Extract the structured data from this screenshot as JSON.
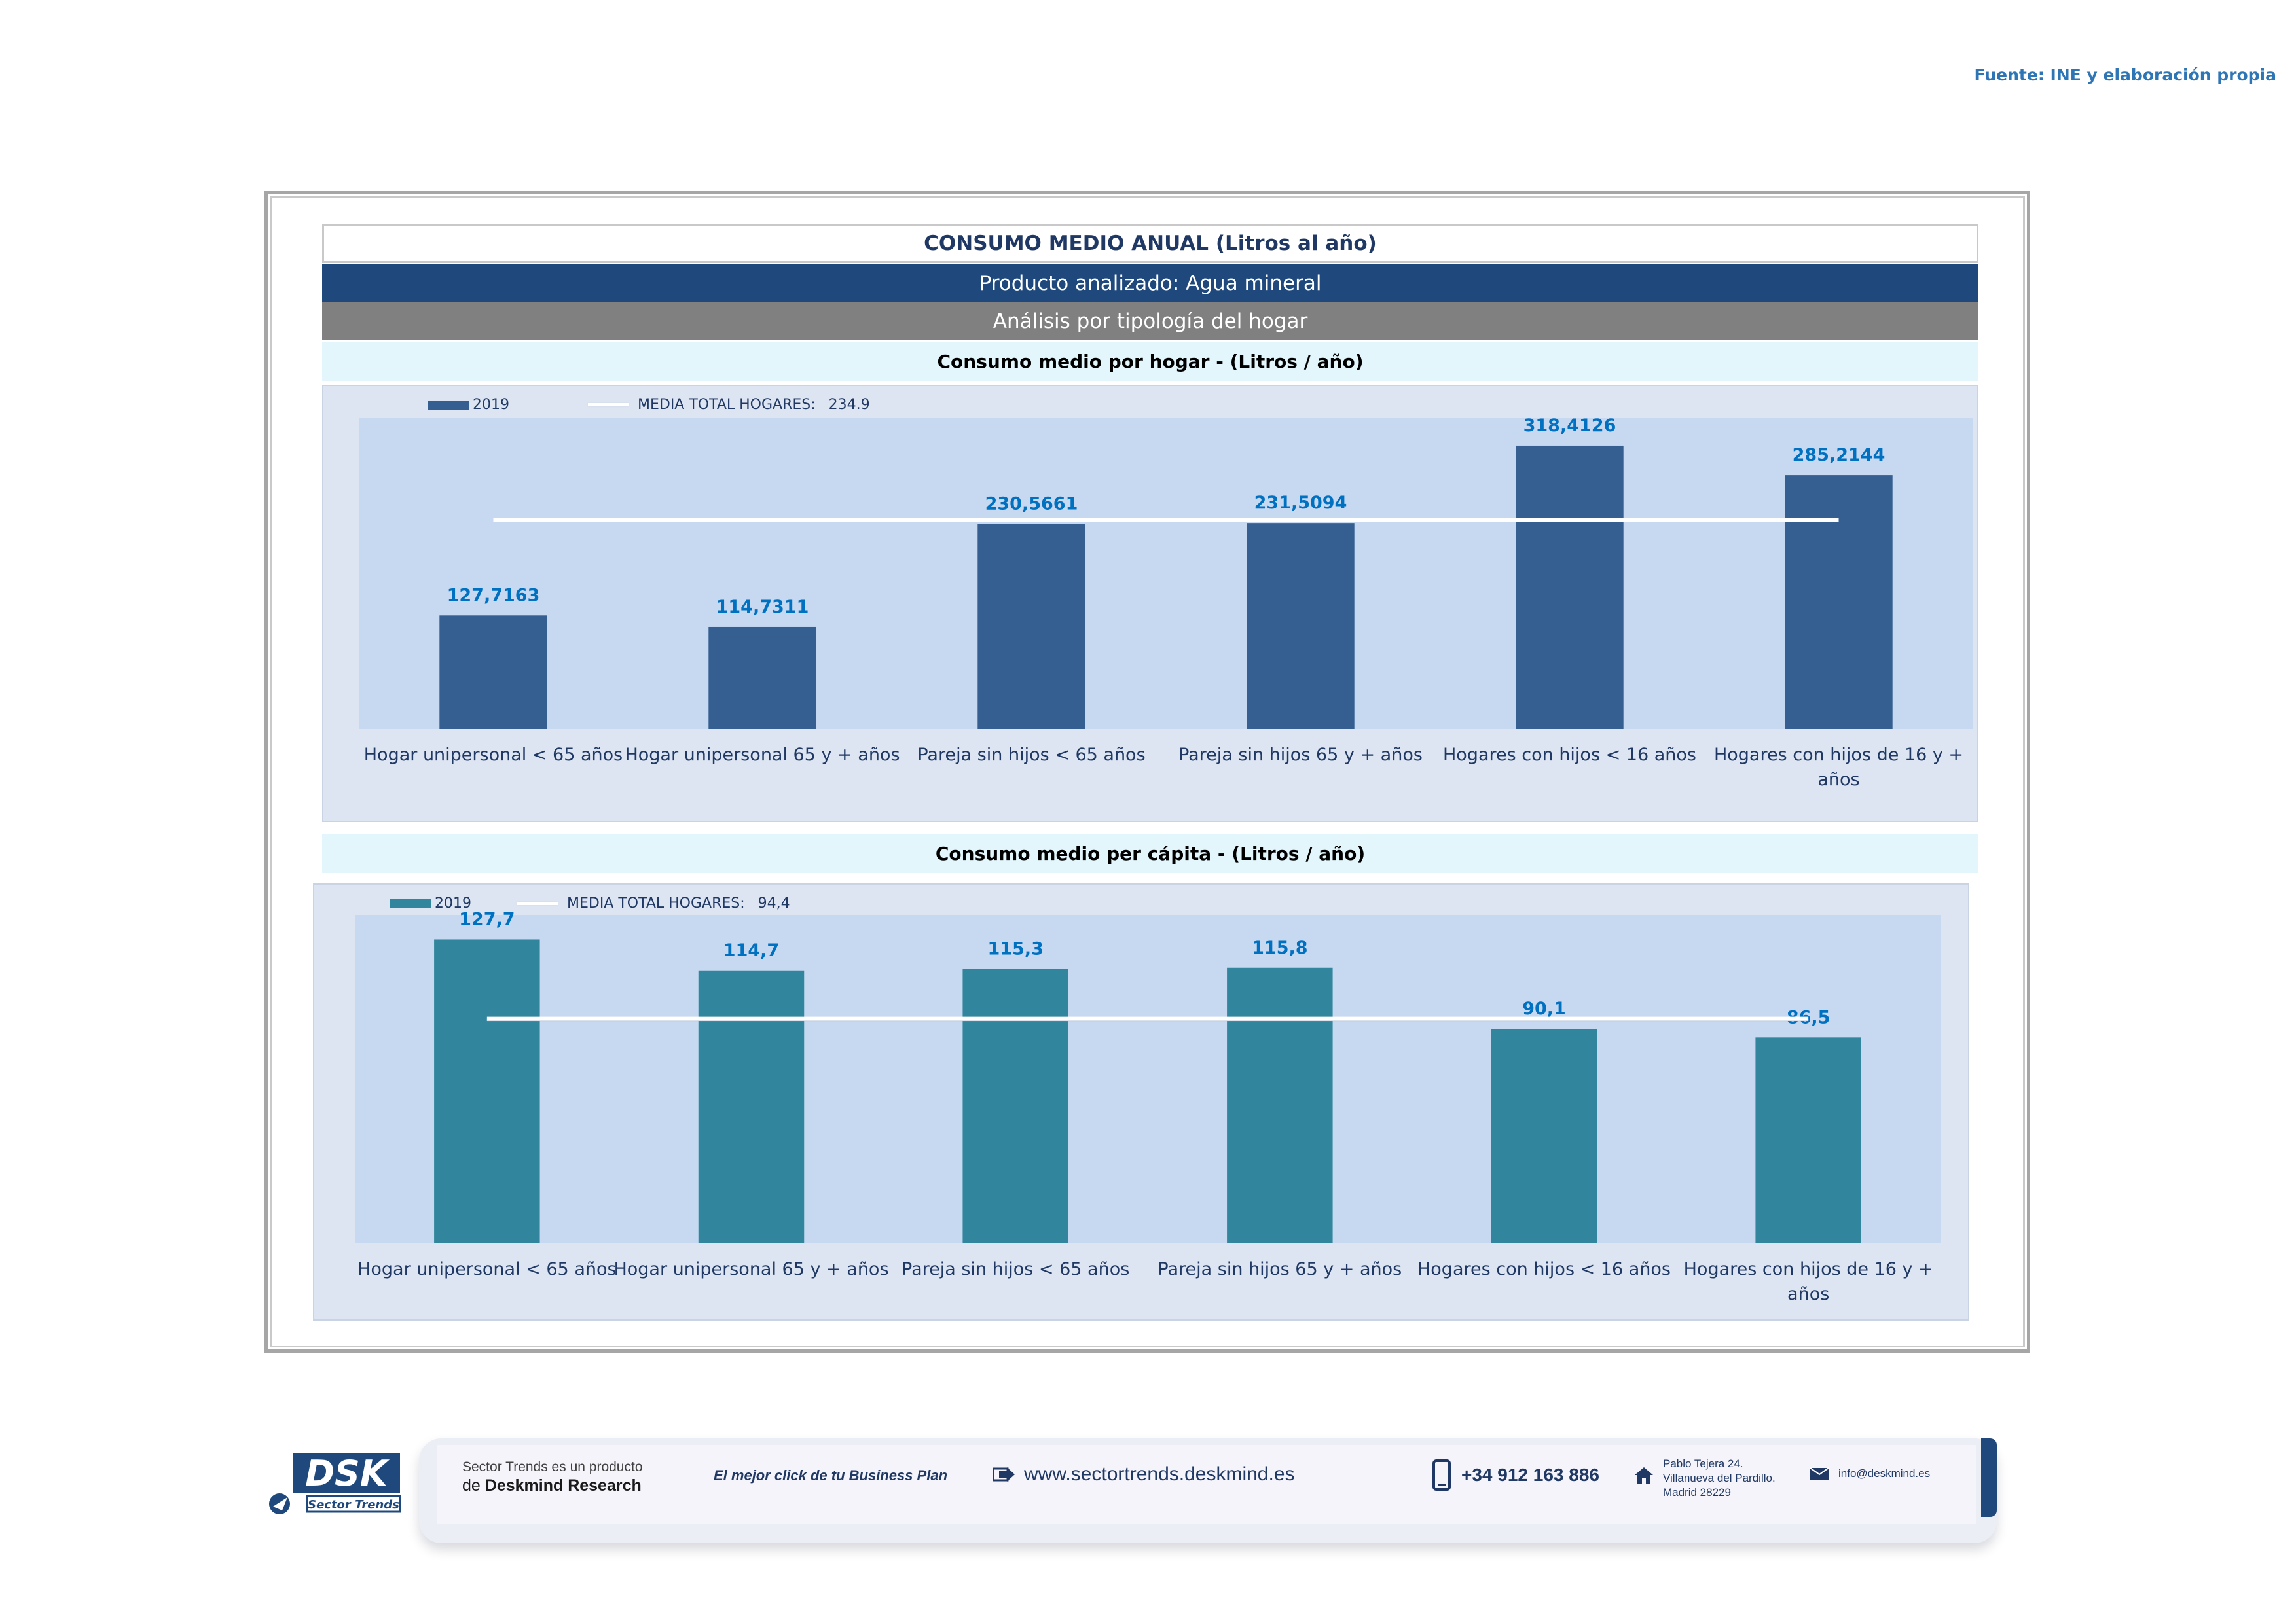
{
  "source": "Fuente: INE y elaboración propia",
  "header": {
    "title": "CONSUMO MEDIO ANUAL (Litros al año)",
    "product": "Producto analizado: Agua mineral",
    "analysis": "Análisis por tipología del hogar"
  },
  "colors": {
    "bar_hogar": "#355f91",
    "bar_capita": "#31859c",
    "plot_bg": "#c6d9f1",
    "label": "#0070c0"
  },
  "chart_data": [
    {
      "type": "bar",
      "title": "Consumo medio por hogar -  (Litros / año)",
      "categories": [
        "Hogar unipersonal < 65 años",
        "Hogar unipersonal  65 y + años",
        "Pareja sin hijos < 65 años",
        "Pareja sin hijos 65 y + años",
        "Hogares con hijos < 16 años",
        "Hogares con hijos de 16 y + años"
      ],
      "series": [
        {
          "name": "2019",
          "values": [
            127.7163,
            114.7311,
            230.5661,
            231.5094,
            318.4126,
            285.2144
          ]
        }
      ],
      "value_labels": [
        "127,7163",
        "114,7311",
        "230,5661",
        "231,5094",
        "318,4126",
        "285,2144"
      ],
      "reference_line": {
        "name": "MEDIA TOTAL  HOGARES:",
        "label": "234.9",
        "value": 234.9
      },
      "ylim": [
        0,
        350
      ],
      "grid": false,
      "legend": "top-left"
    },
    {
      "type": "bar",
      "title": "Consumo medio per cápita -  (Litros / año)",
      "categories": [
        "Hogar unipersonal < 65 años",
        "Hogar unipersonal  65 y + años",
        "Pareja sin hijos < 65 años",
        "Pareja sin hijos 65 y + años",
        "Hogares con hijos < 16 años",
        "Hogares con hijos de 16 y + años"
      ],
      "series": [
        {
          "name": "2019",
          "values": [
            127.7,
            114.7,
            115.3,
            115.8,
            90.1,
            86.5
          ]
        }
      ],
      "value_labels": [
        "127,7",
        "114,7",
        "115,3",
        "115,8",
        "90,1",
        "86,5"
      ],
      "reference_line": {
        "name": "MEDIA TOTAL  HOGARES:",
        "label": "94,4",
        "value": 94.4
      },
      "ylim": [
        0,
        138
      ],
      "grid": false,
      "legend": "top-left"
    }
  ],
  "footer": {
    "logo_text": "DSK",
    "logo_sub": "Sector Trends",
    "product_line1": "Sector Trends es un producto",
    "product_line2_prefix": "de",
    "product_line2_brand": "Deskmind Research",
    "slogan": "El mejor click de tu Business Plan",
    "website": "www.sectortrends.deskmind.es",
    "phone": "+34 912 163 886",
    "address1": "Pablo Tejera 24.",
    "address2": "Villanueva del Pardillo.",
    "address3": "Madrid 28229",
    "email": "info@deskmind.es"
  }
}
